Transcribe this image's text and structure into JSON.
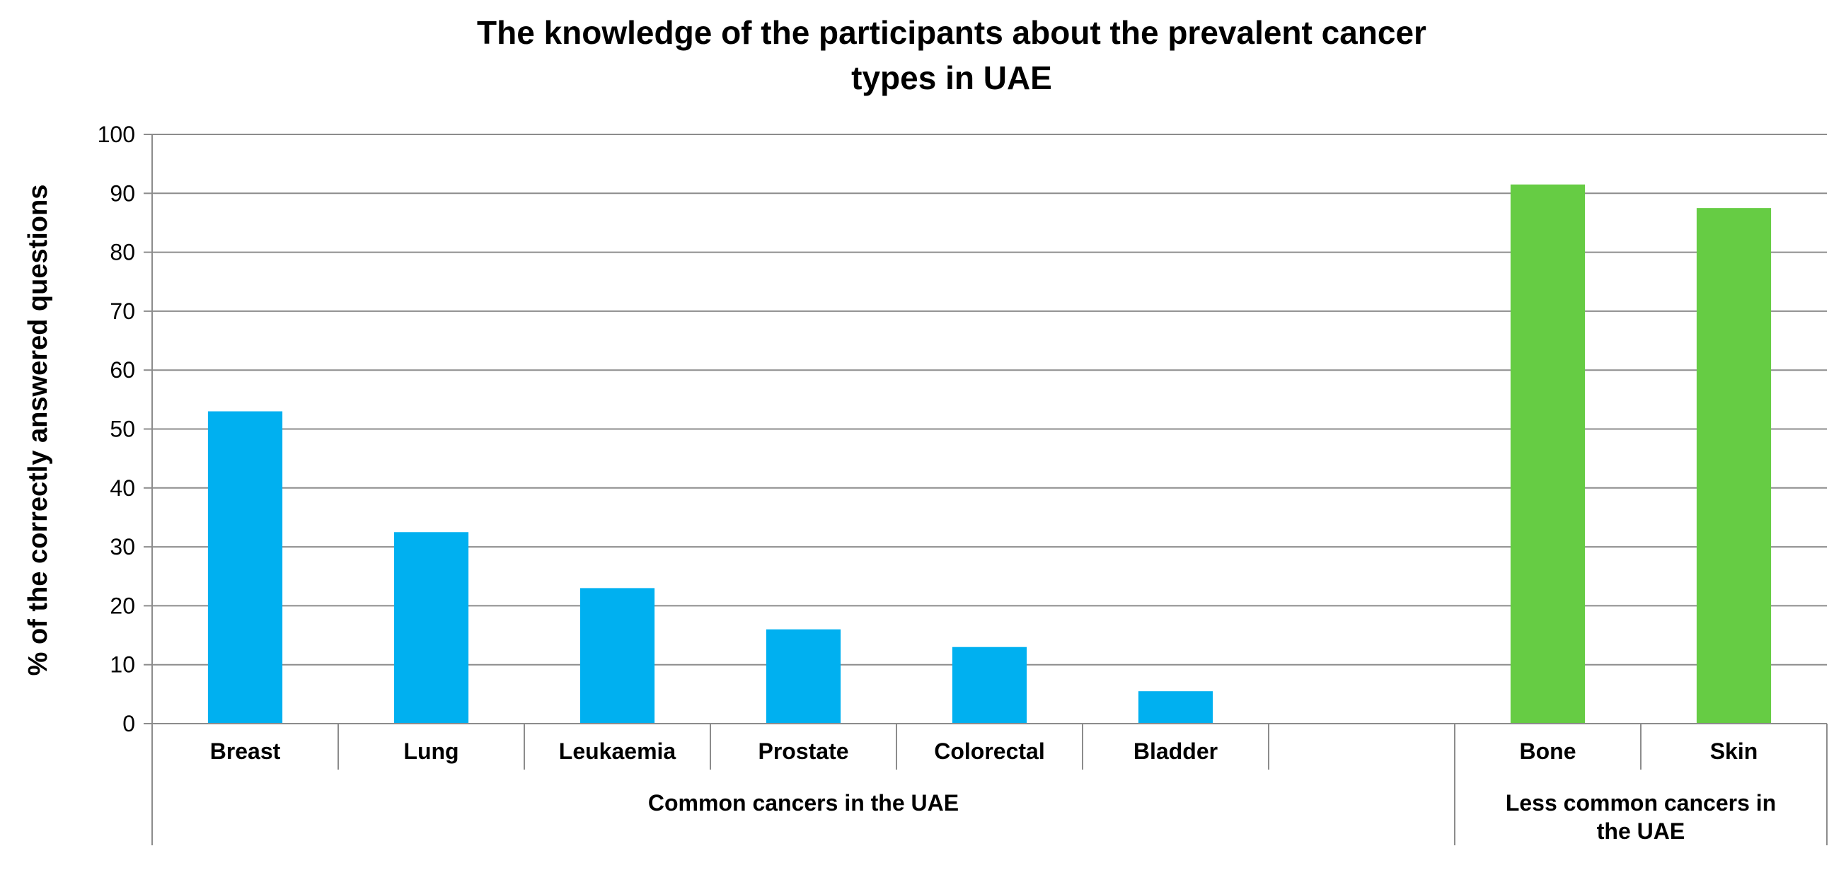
{
  "chart_data": {
    "type": "bar",
    "title": [
      "The knowledge of the participants about the prevalent cancer",
      "types in UAE"
    ],
    "xlabel": "",
    "ylabel": "% of the correctly answered questions",
    "ylim": [
      0,
      100
    ],
    "yticks": [
      "0",
      "10",
      "20",
      "30",
      "40",
      "50",
      "60",
      "70",
      "80",
      "90",
      "100"
    ],
    "grid": true,
    "categories": [
      "Breast",
      "Lung",
      "Leukaemia",
      "Prostate",
      "Colorectal",
      "Bladder",
      "",
      "Bone",
      "Skin"
    ],
    "values": [
      53,
      32.5,
      23,
      16,
      13,
      5.5,
      null,
      91.5,
      87.5
    ],
    "colors": [
      "#00b0f0",
      "#00b0f0",
      "#00b0f0",
      "#00b0f0",
      "#00b0f0",
      "#00b0f0",
      "#ffffff",
      "#66cc44",
      "#66cc44"
    ],
    "groups": [
      {
        "label": [
          "Common cancers in the UAE"
        ],
        "span": [
          0,
          6
        ]
      },
      {
        "label": [
          "Less common cancers in",
          "the UAE"
        ],
        "span": [
          7,
          8
        ]
      }
    ]
  }
}
